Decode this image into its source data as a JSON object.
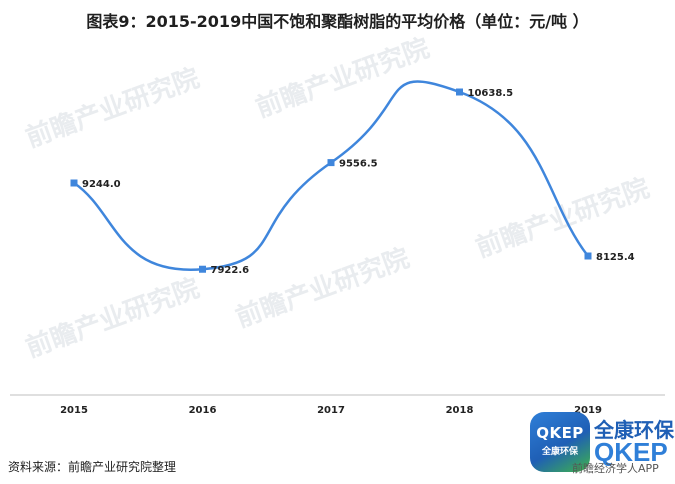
{
  "title": "图表9：2015-2019中国不饱和聚酯树脂的平均价格（单位：元/吨 ）",
  "source": "资料来源：前瞻产业研究院整理",
  "watermark": "前瞻产业研究院",
  "logo": {
    "badge_big": "QKEP",
    "badge_small": "全康环保",
    "name": "全康环保",
    "code": "QKEP",
    "footer": "前瞻经济学人APP"
  },
  "colors": {
    "line": "#3f86dc",
    "marker": "#3f86dc",
    "axis": "#bfbfbf"
  },
  "chart_data": {
    "type": "line",
    "categories": [
      "2015",
      "2016",
      "2017",
      "2018",
      "2019"
    ],
    "series": [
      {
        "values": [
          9244.0,
          7922.6,
          9556.5,
          10638.5,
          8125.4
        ],
        "labels": [
          "9244.0",
          "7922.6",
          "9556.5",
          "10638.5",
          "8125.4"
        ]
      }
    ],
    "smooth": true,
    "grid": false,
    "legend": "none"
  }
}
